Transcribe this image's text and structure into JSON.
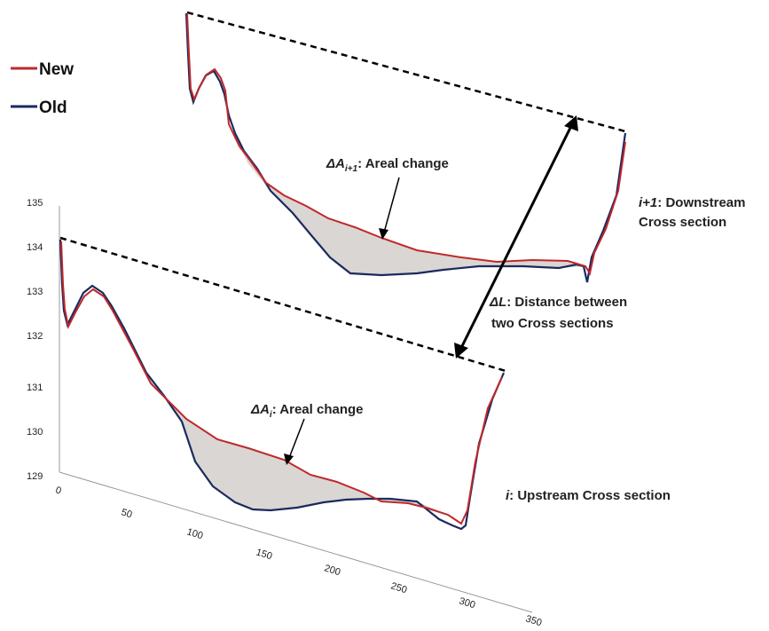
{
  "legend": {
    "items": [
      {
        "label": "New",
        "color": "#c0282a"
      },
      {
        "label": "Old",
        "color": "#1a2a5e"
      }
    ]
  },
  "axes": {
    "y_ticks": [
      "135",
      "134",
      "133",
      "132",
      "131",
      "130",
      "129"
    ],
    "x_ticks": [
      "0",
      "50",
      "100",
      "150",
      "200",
      "250",
      "300",
      "350"
    ]
  },
  "annotations": {
    "downstream_change": {
      "delta": "ΔA",
      "subscript": "i+1",
      "text": ": Areal change"
    },
    "upstream_change": {
      "delta": "ΔA",
      "subscript": "i",
      "text": ": Areal change"
    },
    "downstream_section": {
      "index": "i+1",
      "line1": ": Downstream",
      "line2": "Cross section"
    },
    "upstream_section": {
      "index": "i",
      "text": ": Upstream Cross section"
    },
    "distance": {
      "delta": "ΔL",
      "line1": ": Distance between",
      "line2": "two Cross sections"
    }
  },
  "colors": {
    "new_line": "#c0282a",
    "old_line": "#1a2a5e",
    "fill": "#d9d6d3",
    "annotation": "#000000"
  }
}
